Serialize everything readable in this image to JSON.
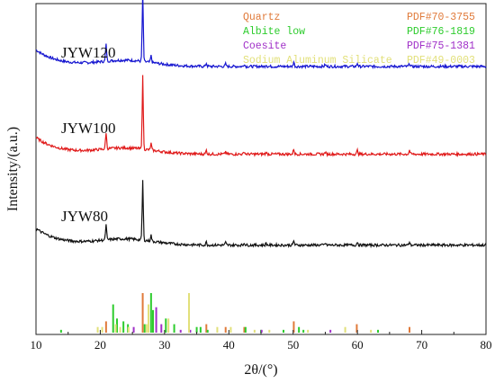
{
  "chart_data": {
    "type": "line",
    "xlabel": "2θ/(°)",
    "ylabel": "Intensity/(a.u.)",
    "xlim": [
      10,
      80
    ],
    "xticks": [
      "10",
      "20",
      "30",
      "40",
      "50",
      "60",
      "70",
      "80"
    ],
    "series": [
      {
        "name": "JYW120",
        "color": "#1515d0",
        "offset": 0.81,
        "peaks": [
          [
            20.9,
            0.05
          ],
          [
            26.6,
            0.21
          ],
          [
            27.9,
            0.02
          ],
          [
            36.5,
            0.01
          ],
          [
            39.5,
            0.008
          ],
          [
            42.4,
            0.008
          ],
          [
            45.8,
            0.006
          ],
          [
            50.1,
            0.014
          ],
          [
            55.0,
            0.006
          ],
          [
            60.0,
            0.01
          ],
          [
            68.1,
            0.01
          ]
        ]
      },
      {
        "name": "JYW100",
        "color": "#e01a1a",
        "offset": 0.545,
        "peaks": [
          [
            20.9,
            0.05
          ],
          [
            26.6,
            0.22
          ],
          [
            27.9,
            0.02
          ],
          [
            36.5,
            0.012
          ],
          [
            39.5,
            0.008
          ],
          [
            42.4,
            0.008
          ],
          [
            45.8,
            0.006
          ],
          [
            50.1,
            0.016
          ],
          [
            55.0,
            0.006
          ],
          [
            60.0,
            0.012
          ],
          [
            68.1,
            0.012
          ]
        ]
      },
      {
        "name": "JYW80",
        "color": "#111111",
        "offset": 0.27,
        "peaks": [
          [
            20.9,
            0.045
          ],
          [
            26.6,
            0.18
          ],
          [
            27.9,
            0.018
          ],
          [
            36.5,
            0.01
          ],
          [
            39.5,
            0.008
          ],
          [
            42.4,
            0.008
          ],
          [
            45.8,
            0.006
          ],
          [
            50.1,
            0.014
          ],
          [
            55.0,
            0.006
          ],
          [
            60.0,
            0.01
          ],
          [
            68.1,
            0.01
          ]
        ]
      }
    ],
    "reference_patterns": [
      {
        "name": "Quartz",
        "pdf": "PDF#70-3755",
        "color": "#e07a3a",
        "lines": [
          [
            20.9,
            0.04
          ],
          [
            26.6,
            0.14
          ],
          [
            36.5,
            0.03
          ],
          [
            39.5,
            0.02
          ],
          [
            42.4,
            0.02
          ],
          [
            50.1,
            0.04
          ],
          [
            59.9,
            0.03
          ],
          [
            68.1,
            0.02
          ]
        ]
      },
      {
        "name": "Albite low",
        "pdf": "PDF#76-1819",
        "color": "#2dcc2d",
        "lines": [
          [
            13.9,
            0.01
          ],
          [
            22.0,
            0.1
          ],
          [
            22.6,
            0.05
          ],
          [
            23.6,
            0.04
          ],
          [
            24.3,
            0.03
          ],
          [
            26.9,
            0.03
          ],
          [
            27.9,
            0.14
          ],
          [
            28.2,
            0.08
          ],
          [
            30.2,
            0.05
          ],
          [
            31.5,
            0.03
          ],
          [
            35.0,
            0.02
          ],
          [
            35.6,
            0.02
          ],
          [
            36.7,
            0.01
          ],
          [
            42.6,
            0.02
          ],
          [
            45.0,
            0.01
          ],
          [
            48.5,
            0.01
          ],
          [
            50.9,
            0.02
          ],
          [
            51.6,
            0.01
          ],
          [
            63.2,
            0.01
          ]
        ]
      },
      {
        "name": "Coesite",
        "pdf": "PDF#75-1381",
        "color": "#a030c8",
        "lines": [
          [
            25.2,
            0.02
          ],
          [
            28.7,
            0.09
          ],
          [
            29.5,
            0.03
          ],
          [
            32.5,
            0.01
          ],
          [
            34.0,
            0.01
          ],
          [
            45.1,
            0.01
          ],
          [
            55.8,
            0.01
          ]
        ]
      },
      {
        "name": "Sodium Aluminum Silicate",
        "pdf": "PDF#49-0003",
        "color": "#e2e07a",
        "lines": [
          [
            19.6,
            0.02
          ],
          [
            20.3,
            0.02
          ],
          [
            22.4,
            0.03
          ],
          [
            23.1,
            0.02
          ],
          [
            24.4,
            0.02
          ],
          [
            27.2,
            0.03
          ],
          [
            27.5,
            0.1
          ],
          [
            30.6,
            0.05
          ],
          [
            33.8,
            0.14
          ],
          [
            38.2,
            0.02
          ],
          [
            40.3,
            0.02
          ],
          [
            44.0,
            0.01
          ],
          [
            46.3,
            0.01
          ],
          [
            52.3,
            0.01
          ],
          [
            58.1,
            0.02
          ],
          [
            62.1,
            0.01
          ]
        ]
      }
    ]
  }
}
